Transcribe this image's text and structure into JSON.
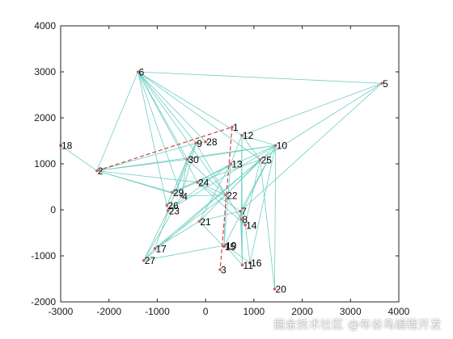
{
  "chart_data": {
    "type": "scatter",
    "title": "",
    "xlabel": "",
    "ylabel": "",
    "xlim": [
      -3000,
      4000
    ],
    "ylim": [
      -2000,
      4000
    ],
    "xticks": [
      "-3000",
      "-2000",
      "-1000",
      "0",
      "1000",
      "2000",
      "3000",
      "4000"
    ],
    "yticks": [
      "-2000",
      "-1000",
      "0",
      "1000",
      "2000",
      "3000",
      "4000"
    ],
    "grid": false,
    "nodes": [
      {
        "id": "1",
        "x": 550,
        "y": 1800
      },
      {
        "id": "2",
        "x": -2250,
        "y": 850
      },
      {
        "id": "3",
        "x": 300,
        "y": -1300
      },
      {
        "id": "4",
        "x": -500,
        "y": 300
      },
      {
        "id": "5",
        "x": 3650,
        "y": 2750
      },
      {
        "id": "6",
        "x": -1400,
        "y": 3000
      },
      {
        "id": "7",
        "x": 720,
        "y": -30
      },
      {
        "id": "8",
        "x": 740,
        "y": -200
      },
      {
        "id": "9",
        "x": -200,
        "y": 1450
      },
      {
        "id": "10",
        "x": 1450,
        "y": 1400
      },
      {
        "id": "11",
        "x": 760,
        "y": -1200
      },
      {
        "id": "12",
        "x": 750,
        "y": 1620
      },
      {
        "id": "13",
        "x": 520,
        "y": 1000
      },
      {
        "id": "14",
        "x": 820,
        "y": -330
      },
      {
        "id": "15",
        "x": 380,
        "y": -800
      },
      {
        "id": "16",
        "x": 920,
        "y": -1150
      },
      {
        "id": "17",
        "x": -1050,
        "y": -840
      },
      {
        "id": "18",
        "x": -3000,
        "y": 1400
      },
      {
        "id": "19",
        "x": 400,
        "y": -770
      },
      {
        "id": "20",
        "x": 1430,
        "y": -1720
      },
      {
        "id": "21",
        "x": -130,
        "y": -250
      },
      {
        "id": "22",
        "x": 420,
        "y": 320
      },
      {
        "id": "23",
        "x": -780,
        "y": -20
      },
      {
        "id": "24",
        "x": -170,
        "y": 600
      },
      {
        "id": "25",
        "x": 1130,
        "y": 1090
      },
      {
        "id": "26",
        "x": -800,
        "y": 100
      },
      {
        "id": "27",
        "x": -1280,
        "y": -1100
      },
      {
        "id": "28",
        "x": 0,
        "y": 1480
      },
      {
        "id": "29",
        "x": -690,
        "y": 380
      },
      {
        "id": "30",
        "x": -380,
        "y": 1100
      }
    ],
    "edges": [
      [
        "6",
        "2"
      ],
      [
        "6",
        "9"
      ],
      [
        "6",
        "30"
      ],
      [
        "6",
        "28"
      ],
      [
        "6",
        "12"
      ],
      [
        "6",
        "24"
      ],
      [
        "6",
        "4"
      ],
      [
        "6",
        "23"
      ],
      [
        "6",
        "25"
      ],
      [
        "6",
        "22"
      ],
      [
        "2",
        "30"
      ],
      [
        "2",
        "24"
      ],
      [
        "2",
        "4"
      ],
      [
        "2",
        "10"
      ],
      [
        "2",
        "29"
      ],
      [
        "2",
        "18"
      ],
      [
        "2",
        "9"
      ],
      [
        "5",
        "12"
      ],
      [
        "5",
        "25"
      ],
      [
        "5",
        "6"
      ],
      [
        "5",
        "7"
      ],
      [
        "12",
        "10"
      ],
      [
        "12",
        "13"
      ],
      [
        "12",
        "8"
      ],
      [
        "12",
        "11"
      ],
      [
        "12",
        "25"
      ],
      [
        "10",
        "16"
      ],
      [
        "10",
        "23"
      ],
      [
        "10",
        "15"
      ],
      [
        "10",
        "29"
      ],
      [
        "10",
        "30"
      ],
      [
        "10",
        "21"
      ],
      [
        "10",
        "20"
      ],
      [
        "10",
        "7"
      ],
      [
        "25",
        "27"
      ],
      [
        "25",
        "17"
      ],
      [
        "25",
        "24"
      ],
      [
        "25",
        "22"
      ],
      [
        "25",
        "20"
      ],
      [
        "25",
        "14"
      ],
      [
        "28",
        "9"
      ],
      [
        "9",
        "30"
      ],
      [
        "9",
        "4"
      ],
      [
        "9",
        "23"
      ],
      [
        "9",
        "22"
      ],
      [
        "30",
        "26"
      ],
      [
        "30",
        "4"
      ],
      [
        "30",
        "22"
      ],
      [
        "30",
        "17"
      ],
      [
        "24",
        "29"
      ],
      [
        "24",
        "13"
      ],
      [
        "24",
        "22"
      ],
      [
        "24",
        "7"
      ],
      [
        "24",
        "14"
      ],
      [
        "13",
        "23"
      ],
      [
        "13",
        "15"
      ],
      [
        "13",
        "21"
      ],
      [
        "22",
        "4"
      ],
      [
        "22",
        "8"
      ],
      [
        "22",
        "17"
      ],
      [
        "22",
        "15"
      ],
      [
        "22",
        "14"
      ],
      [
        "4",
        "27"
      ],
      [
        "4",
        "29"
      ],
      [
        "29",
        "26"
      ],
      [
        "26",
        "23"
      ],
      [
        "23",
        "27"
      ],
      [
        "7",
        "8"
      ],
      [
        "8",
        "14"
      ],
      [
        "8",
        "11"
      ],
      [
        "7",
        "11"
      ],
      [
        "14",
        "16"
      ],
      [
        "21",
        "15"
      ],
      [
        "21",
        "17"
      ],
      [
        "15",
        "19"
      ],
      [
        "19",
        "11"
      ],
      [
        "19",
        "16"
      ],
      [
        "17",
        "27"
      ],
      [
        "27",
        "19"
      ],
      [
        "21",
        "7"
      ]
    ],
    "route": [
      "2",
      "1",
      "3"
    ],
    "colors": {
      "edge": "#6dcfc2",
      "route": "#cc3333",
      "node": "#d06060",
      "axis": "#222222"
    }
  },
  "watermark": "掘金技术社区 @布谷鸟编程开发"
}
